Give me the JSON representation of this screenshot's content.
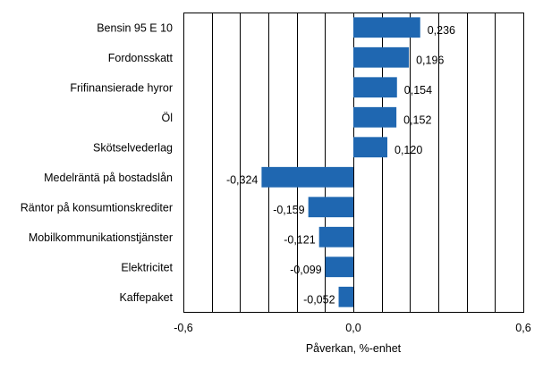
{
  "chart_data": {
    "type": "bar",
    "orientation": "horizontal",
    "categories": [
      "Bensin 95 E 10",
      "Fordonsskatt",
      "Frifinansierade hyror",
      "Öl",
      "Skötselvederlag",
      "Medelräntä på bostadslån",
      "Räntor på konsumtionskrediter",
      "Mobilkommunikationstjänster",
      "Elektricitet",
      "Kaffepaket"
    ],
    "values": [
      0.236,
      0.196,
      0.154,
      0.152,
      0.12,
      -0.324,
      -0.159,
      -0.121,
      -0.099,
      -0.052
    ],
    "value_labels": [
      "0,236",
      "0,196",
      "0,154",
      "0,152",
      "0,120",
      "-0,324",
      "-0,159",
      "-0,121",
      "-0,099",
      "-0,052"
    ],
    "title": "",
    "xlabel": "Påverkan, %-enhet",
    "ylabel": "",
    "xlim": [
      -0.6,
      0.6
    ],
    "xticks": [
      -0.6,
      0.0,
      0.6
    ],
    "xtick_labels": [
      "-0,6",
      "0,0",
      "0,6"
    ],
    "grid_step": 0.1,
    "grid": true,
    "legend": "none",
    "bar_color": "#1f67b1",
    "grid_color": "#000000"
  }
}
